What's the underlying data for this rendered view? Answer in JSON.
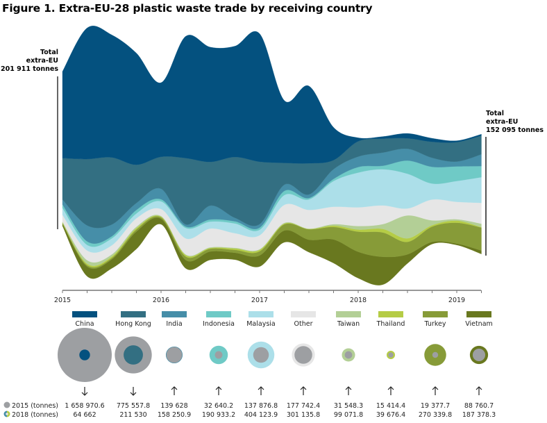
{
  "title": "Figure 1. Extra-EU-28 plastic waste trade by receiving country",
  "annotations": {
    "left": {
      "line1": "Total",
      "line2": "extra-EU",
      "line3": "201 911 tonnes"
    },
    "right": {
      "line1": "Total",
      "line2": "extra-EU",
      "line3": "152 095 tonnes"
    }
  },
  "legend_rows": {
    "y2015": "2015 (tonnes)",
    "y2018": "2018  (tonnes)"
  },
  "chart_data": [
    {
      "type": "area",
      "subtype": "streamgraph",
      "x_tick_labels": [
        "2015",
        "2016",
        "2017",
        "2018",
        "2019"
      ],
      "x": [
        "2015-01",
        "2015-04",
        "2015-07",
        "2015-10",
        "2016-01",
        "2016-04",
        "2016-07",
        "2016-10",
        "2017-01",
        "2017-04",
        "2017-07",
        "2017-10",
        "2018-01",
        "2018-04",
        "2018-07",
        "2018-10",
        "2019-01",
        "2019-04"
      ],
      "grid": false,
      "legend": "bottom",
      "series": [
        {
          "name": "China",
          "color": "#04517f",
          "values": [
            111000,
            168000,
            157000,
            143000,
            95000,
            156000,
            147000,
            142000,
            164000,
            80000,
            99000,
            42000,
            4500,
            2700,
            6200,
            4500,
            1800,
            1800
          ]
        },
        {
          "name": "Hong Kong",
          "color": "#336f82",
          "values": [
            53000,
            85000,
            86000,
            49000,
            41000,
            85000,
            56000,
            78000,
            80000,
            28000,
            40000,
            11600,
            19600,
            17800,
            13400,
            20500,
            24900,
            24000
          ]
        },
        {
          "name": "India",
          "color": "#468ea8",
          "values": [
            6200,
            20500,
            15100,
            8900,
            13400,
            2700,
            17800,
            4500,
            4500,
            8000,
            4500,
            12500,
            13400,
            16900,
            15100,
            11600,
            6200,
            15100
          ]
        },
        {
          "name": "Indonesia",
          "color": "#6fcac6",
          "values": [
            4500,
            4500,
            2700,
            4500,
            2700,
            1800,
            2700,
            2700,
            2700,
            5300,
            1800,
            2700,
            7100,
            4500,
            16900,
            21400,
            18700,
            14200
          ]
        },
        {
          "name": "Malaysia",
          "color": "#acdfe9",
          "values": [
            8900,
            7100,
            8900,
            6200,
            9800,
            13400,
            8900,
            12500,
            7100,
            12500,
            13400,
            32900,
            44500,
            46300,
            44500,
            20500,
            26700,
            32900
          ]
        },
        {
          "name": "Other",
          "color": "#e6e6e6",
          "values": [
            8900,
            12500,
            11600,
            10700,
            8900,
            20500,
            24000,
            18700,
            17800,
            23100,
            24000,
            22300,
            24000,
            24000,
            8900,
            26700,
            22300,
            26700
          ]
        },
        {
          "name": "Taiwan",
          "color": "#b3cf96",
          "values": [
            900,
            4500,
            2700,
            1800,
            900,
            900,
            900,
            900,
            900,
            900,
            400,
            1800,
            4500,
            6200,
            29400,
            6200,
            1800,
            4500
          ]
        },
        {
          "name": "Thailand",
          "color": "#b5cc46",
          "values": [
            900,
            1800,
            1800,
            1800,
            900,
            1800,
            900,
            1800,
            1800,
            900,
            400,
            1800,
            2700,
            4500,
            4500,
            1800,
            2700,
            400
          ]
        },
        {
          "name": "Turkey",
          "color": "#879b38",
          "values": [
            900,
            1800,
            1800,
            2700,
            1800,
            4500,
            3600,
            3600,
            5300,
            8000,
            13400,
            16000,
            25800,
            31200,
            16000,
            19600,
            26700,
            29400
          ]
        },
        {
          "name": "Vietnam",
          "color": "#69781f",
          "values": [
            2700,
            12500,
            11600,
            22300,
            7100,
            10700,
            10700,
            8900,
            14200,
            15100,
            16000,
            30300,
            33800,
            35600,
            11600,
            2700,
            1800,
            4500
          ]
        }
      ]
    },
    {
      "type": "bubble",
      "colors": {
        "y2015": "#9d9fa2"
      },
      "categories": [
        "China",
        "Hong Kong",
        "India",
        "Indonesia",
        "Malaysia",
        "Other",
        "Taiwan",
        "Thailand",
        "Turkey",
        "Vietnam"
      ],
      "series": [
        {
          "name": "2015 (tonnes)",
          "values": [
            1658970.6,
            775557.8,
            139628,
            32640.2,
            137876.8,
            177742.4,
            31548.3,
            15414.4,
            19377.7,
            88760.7
          ],
          "labels": [
            "1 658 970.6",
            "775 557.8",
            "139 628",
            "32 640.2",
            "137 876.8",
            "177 742.4",
            "31 548.3",
            "15 414.4",
            "19 377.7",
            "88 760.7"
          ]
        },
        {
          "name": "2018  (tonnes)",
          "values": [
            64662,
            211530,
            158250.9,
            190933.2,
            404123.9,
            301135.8,
            99071.8,
            39676.4,
            270339.8,
            187378.3
          ],
          "labels": [
            "64 662",
            "211 530",
            "158 250.9",
            "190 933.2",
            "404 123.9",
            "301 135.8",
            "99 071.8",
            "39 676.4",
            "270 339.8",
            "187 378.3"
          ]
        }
      ],
      "trend": [
        "down",
        "down",
        "up",
        "up",
        "up",
        "up",
        "up",
        "up",
        "up",
        "up"
      ]
    }
  ]
}
